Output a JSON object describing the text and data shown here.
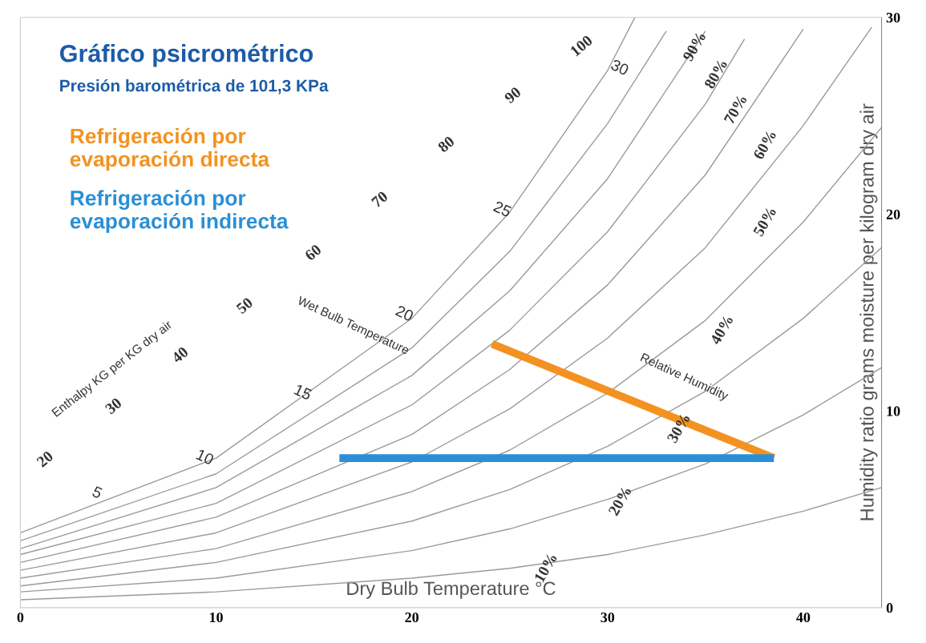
{
  "chart_data": {
    "type": "line",
    "title": "Gráfico psicrométrico",
    "subtitle": "Presión barométrica de 101,3 KPa",
    "xlabel": "Dry Bulb Temperature °C",
    "ylabel": "Humidity ratio grams moisture per kilogram dry air",
    "xlim": [
      0,
      44
    ],
    "ylim": [
      0,
      30
    ],
    "xticks": [
      0,
      10,
      20,
      30,
      40
    ],
    "yticks": [
      0,
      10,
      20,
      30
    ],
    "grid": false,
    "legend": "top left",
    "series": [
      {
        "color": "#9a9a9a",
        "x": [
          0,
          10,
          20,
          25,
          30,
          31.4
        ],
        "values": [
          3.8,
          7.6,
          14.7,
          20.1,
          27.3,
          30
        ]
      },
      {
        "color": "#9a9a9a",
        "x": [
          0,
          10,
          20,
          25,
          30,
          33
        ],
        "values": [
          3.4,
          6.8,
          13.2,
          18.1,
          24.6,
          29.3
        ]
      },
      {
        "color": "#9a9a9a",
        "x": [
          0,
          10,
          20,
          25,
          30,
          35
        ],
        "values": [
          3.0,
          6.1,
          11.8,
          16.1,
          21.8,
          29.3
        ]
      },
      {
        "color": "#9a9a9a",
        "x": [
          0,
          10,
          20,
          25,
          30,
          35,
          37
        ],
        "values": [
          2.7,
          5.3,
          10.3,
          14.1,
          19.1,
          25.6,
          28.9
        ]
      },
      {
        "color": "#9a9a9a",
        "x": [
          0,
          10,
          20,
          25,
          30,
          35,
          40
        ],
        "values": [
          2.3,
          4.6,
          8.8,
          12.1,
          16.4,
          22.0,
          29.4
        ]
      },
      {
        "color": "#9a9a9a",
        "x": [
          0,
          10,
          20,
          25,
          30,
          35,
          40,
          43.5
        ],
        "values": [
          1.9,
          3.8,
          7.4,
          10.1,
          13.7,
          18.3,
          24.5,
          29.5
        ]
      },
      {
        "color": "#9a9a9a",
        "x": [
          0,
          10,
          20,
          25,
          30,
          35,
          40,
          44
        ],
        "values": [
          1.5,
          3.0,
          5.9,
          8.0,
          10.9,
          14.6,
          19.6,
          24.4
        ]
      },
      {
        "color": "#9a9a9a",
        "x": [
          0,
          10,
          20,
          25,
          30,
          35,
          40,
          44
        ],
        "values": [
          1.1,
          2.3,
          4.4,
          6.0,
          8.2,
          11.0,
          14.7,
          18.3
        ]
      },
      {
        "color": "#9a9a9a",
        "x": [
          0,
          10,
          20,
          25,
          30,
          35,
          40,
          44
        ],
        "values": [
          0.8,
          1.5,
          2.9,
          4.0,
          5.5,
          7.3,
          9.8,
          12.2
        ]
      },
      {
        "color": "#9a9a9a",
        "x": [
          0,
          10,
          20,
          25,
          30,
          35,
          40,
          44
        ],
        "values": [
          0.4,
          0.8,
          1.5,
          2.0,
          2.7,
          3.7,
          4.9,
          6.1
        ]
      },
      {
        "name": "Refrigeración por evaporación directa",
        "color": "#f39220",
        "x": [
          24.1,
          38.5
        ],
        "values": [
          13.4,
          7.6
        ]
      },
      {
        "name": "Refrigeración por evaporación indirecta",
        "color": "#2a8fd6",
        "x": [
          16.3,
          38.5
        ],
        "values": [
          7.6,
          7.6
        ]
      }
    ],
    "annotations": [
      "20",
      "30",
      "40",
      "50",
      "60",
      "70",
      "80",
      "90",
      "100",
      "5",
      "10",
      "15",
      "20",
      "25",
      "30",
      "90%",
      "80%",
      "70%",
      "60%",
      "50%",
      "40%",
      "30%",
      "20%",
      "10%",
      "Relative Humidity",
      "Wet Bulb Temperature",
      "Enthalpy KG per KG dry air"
    ]
  }
}
